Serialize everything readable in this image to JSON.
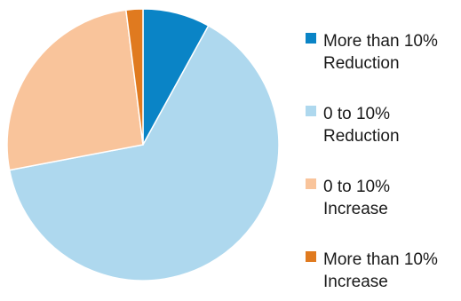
{
  "chart_data": {
    "type": "pie",
    "title": "",
    "legend_position": "right",
    "slices": [
      {
        "label": [
          "More than 10%",
          "Reduction"
        ],
        "value": 8,
        "color": "#0a84c6"
      },
      {
        "label": [
          "0 to 10%",
          "Reduction"
        ],
        "value": 64,
        "color": "#aed8ee"
      },
      {
        "label": [
          "0 to 10%",
          "Increase"
        ],
        "value": 26,
        "color": "#f9c49b"
      },
      {
        "label": [
          "More than 10%",
          "Increase"
        ],
        "value": 2,
        "color": "#e07a1f"
      }
    ]
  }
}
